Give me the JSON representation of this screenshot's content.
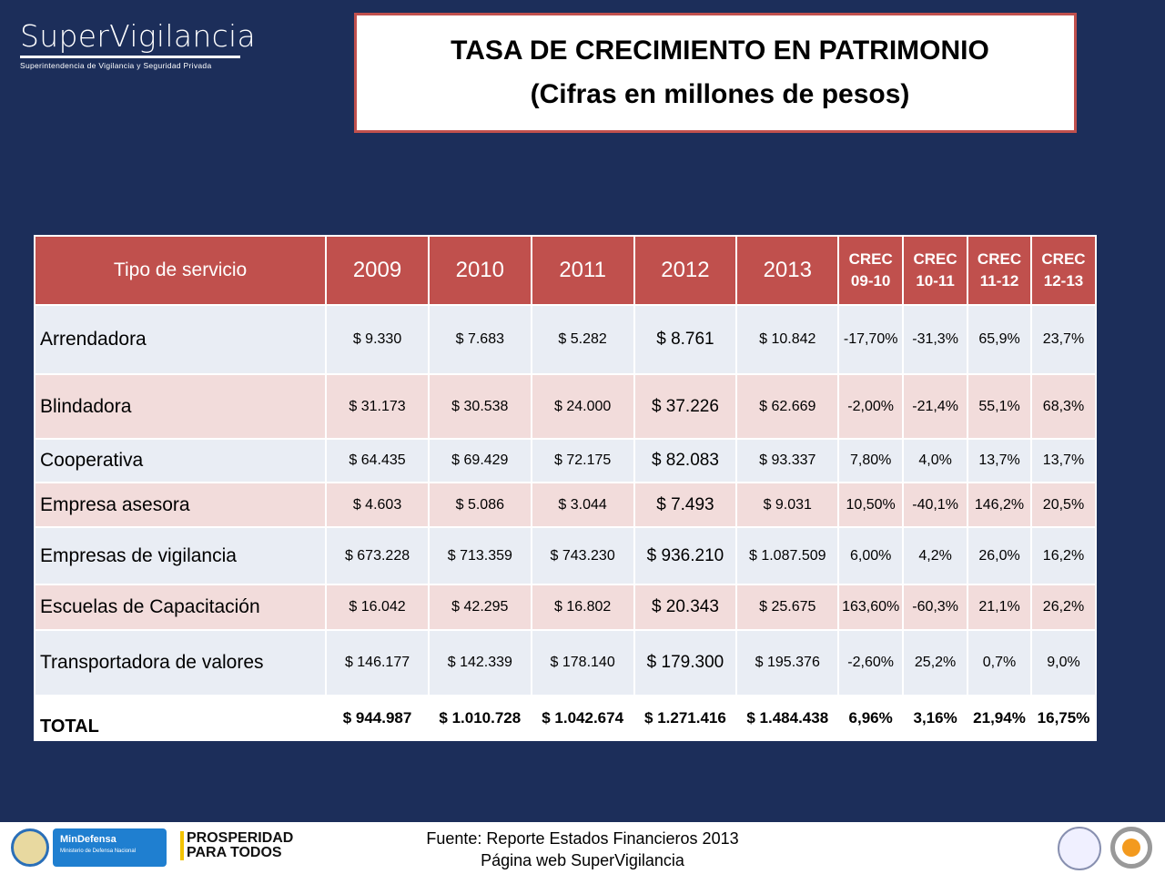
{
  "logo": {
    "name": "SuperVigilancia",
    "subtitle": "Superintendencia de Vigilancia y Seguridad Privada"
  },
  "title": {
    "line1": "TASA DE CRECIMIENTO EN PATRIMONIO",
    "line2": "(Cifras en millones de pesos)"
  },
  "table": {
    "headers": [
      "Tipo de servicio",
      "2009",
      "2010",
      "2011",
      "2012",
      "2013",
      "CREC 09-10",
      "CREC 10-11",
      "CREC 11-12",
      "CREC 12-13"
    ],
    "rows": [
      [
        "Arrendadora",
        "$ 9.330",
        "$ 7.683",
        "$ 5.282",
        "$ 8.761",
        "$ 10.842",
        "-17,70%",
        "-31,3%",
        "65,9%",
        "23,7%"
      ],
      [
        "Blindadora",
        "$ 31.173",
        "$ 30.538",
        "$ 24.000",
        "$ 37.226",
        "$ 62.669",
        "-2,00%",
        "-21,4%",
        "55,1%",
        "68,3%"
      ],
      [
        "Cooperativa",
        "$ 64.435",
        "$ 69.429",
        "$ 72.175",
        "$ 82.083",
        "$ 93.337",
        "7,80%",
        "4,0%",
        "13,7%",
        "13,7%"
      ],
      [
        "Empresa asesora",
        "$ 4.603",
        "$ 5.086",
        "$ 3.044",
        "$ 7.493",
        "$ 9.031",
        "10,50%",
        "-40,1%",
        "146,2%",
        "20,5%"
      ],
      [
        "Empresas de vigilancia",
        "$ 673.228",
        "$ 713.359",
        "$ 743.230",
        "$ 936.210",
        "$ 1.087.509",
        "6,00%",
        "4,2%",
        "26,0%",
        "16,2%"
      ],
      [
        "Escuelas de Capacitación",
        "$ 16.042",
        "$ 42.295",
        "$ 16.802",
        "$ 20.343",
        "$ 25.675",
        "163,60%",
        "-60,3%",
        "21,1%",
        "26,2%"
      ],
      [
        "Transportadora de valores",
        "$ 146.177",
        "$ 142.339",
        "$  178.140",
        "$ 179.300",
        "$ 195.376",
        "-2,60%",
        "25,2%",
        "0,7%",
        "9,0%"
      ]
    ],
    "total": [
      "TOTAL",
      "$ 944.987",
      "$ 1.010.728",
      "$ 1.042.674",
      "$ 1.271.416",
      "$ 1.484.438",
      "6,96%",
      "3,16%",
      "21,94%",
      "16,75%"
    ]
  },
  "footer": {
    "source_line1": "Fuente: Reporte Estados Financieros 2013",
    "source_line2": "Página web SuperVigilancia",
    "mindefensa": "MinDefensa",
    "mindefensa_sub": "Ministerio de Defensa Nacional",
    "prosperidad_1": "PROSPERIDAD",
    "prosperidad_2": "PARA TODOS"
  }
}
